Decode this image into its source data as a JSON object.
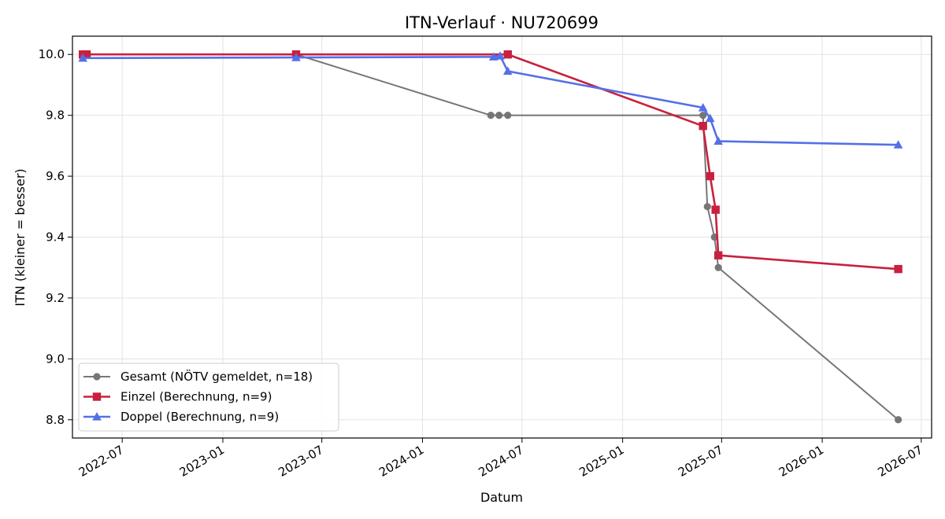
{
  "chart_data": {
    "type": "line",
    "title": "ITN-Verlauf · NU720699",
    "xlabel": "Datum",
    "ylabel": "ITN  (kleiner = besser)",
    "x_axis_type": "date",
    "xlim": [
      "2022-04-01",
      "2026-07-20"
    ],
    "ylim": [
      8.74,
      10.06
    ],
    "xticks": [
      {
        "date": "2022-07-01",
        "label": "2022-07"
      },
      {
        "date": "2023-01-01",
        "label": "2023-01"
      },
      {
        "date": "2023-07-01",
        "label": "2023-07"
      },
      {
        "date": "2024-01-01",
        "label": "2024-01"
      },
      {
        "date": "2024-07-01",
        "label": "2024-07"
      },
      {
        "date": "2025-01-01",
        "label": "2025-01"
      },
      {
        "date": "2025-07-01",
        "label": "2025-07"
      },
      {
        "date": "2026-01-01",
        "label": "2026-01"
      },
      {
        "date": "2026-07-01",
        "label": "2026-07"
      }
    ],
    "yticks": [
      8.8,
      9.0,
      9.2,
      9.4,
      9.6,
      9.8,
      10.0
    ],
    "grid": true,
    "legend_position": "lower-left",
    "series": [
      {
        "name": "Gesamt (NÖTV gemeldet, n=18)",
        "color": "#555555",
        "marker": "circle",
        "points": [
          {
            "x": "2022-04-20",
            "y": 10.0
          },
          {
            "x": "2022-04-27",
            "y": 10.0
          },
          {
            "x": "2023-05-15",
            "y": 10.0
          },
          {
            "x": "2024-05-05",
            "y": 9.8
          },
          {
            "x": "2024-05-20",
            "y": 9.8
          },
          {
            "x": "2024-06-05",
            "y": 9.8
          },
          {
            "x": "2025-05-28",
            "y": 9.8
          },
          {
            "x": "2025-06-05",
            "y": 9.5
          },
          {
            "x": "2025-06-18",
            "y": 9.4
          },
          {
            "x": "2025-06-25",
            "y": 9.3
          },
          {
            "x": "2026-05-20",
            "y": 8.8
          }
        ]
      },
      {
        "name": "Einzel (Berechnung, n=9)",
        "color": "#c8203f",
        "marker": "square",
        "points": [
          {
            "x": "2022-04-20",
            "y": 10.0
          },
          {
            "x": "2022-04-27",
            "y": 10.0
          },
          {
            "x": "2023-05-15",
            "y": 10.0
          },
          {
            "x": "2024-06-05",
            "y": 10.0
          },
          {
            "x": "2025-05-28",
            "y": 9.765
          },
          {
            "x": "2025-06-10",
            "y": 9.6
          },
          {
            "x": "2025-06-20",
            "y": 9.49
          },
          {
            "x": "2025-06-25",
            "y": 9.34
          },
          {
            "x": "2026-05-20",
            "y": 9.295
          }
        ]
      },
      {
        "name": "Doppel (Berechnung, n=9)",
        "color": "#5470e8",
        "marker": "triangle",
        "points": [
          {
            "x": "2022-04-20",
            "y": 9.988
          },
          {
            "x": "2023-05-15",
            "y": 9.99
          },
          {
            "x": "2024-05-10",
            "y": 9.992
          },
          {
            "x": "2024-05-22",
            "y": 9.995
          },
          {
            "x": "2024-06-05",
            "y": 9.945
          },
          {
            "x": "2025-05-28",
            "y": 9.825
          },
          {
            "x": "2025-06-10",
            "y": 9.79
          },
          {
            "x": "2025-06-25",
            "y": 9.715
          },
          {
            "x": "2026-05-20",
            "y": 9.703
          }
        ]
      }
    ]
  }
}
